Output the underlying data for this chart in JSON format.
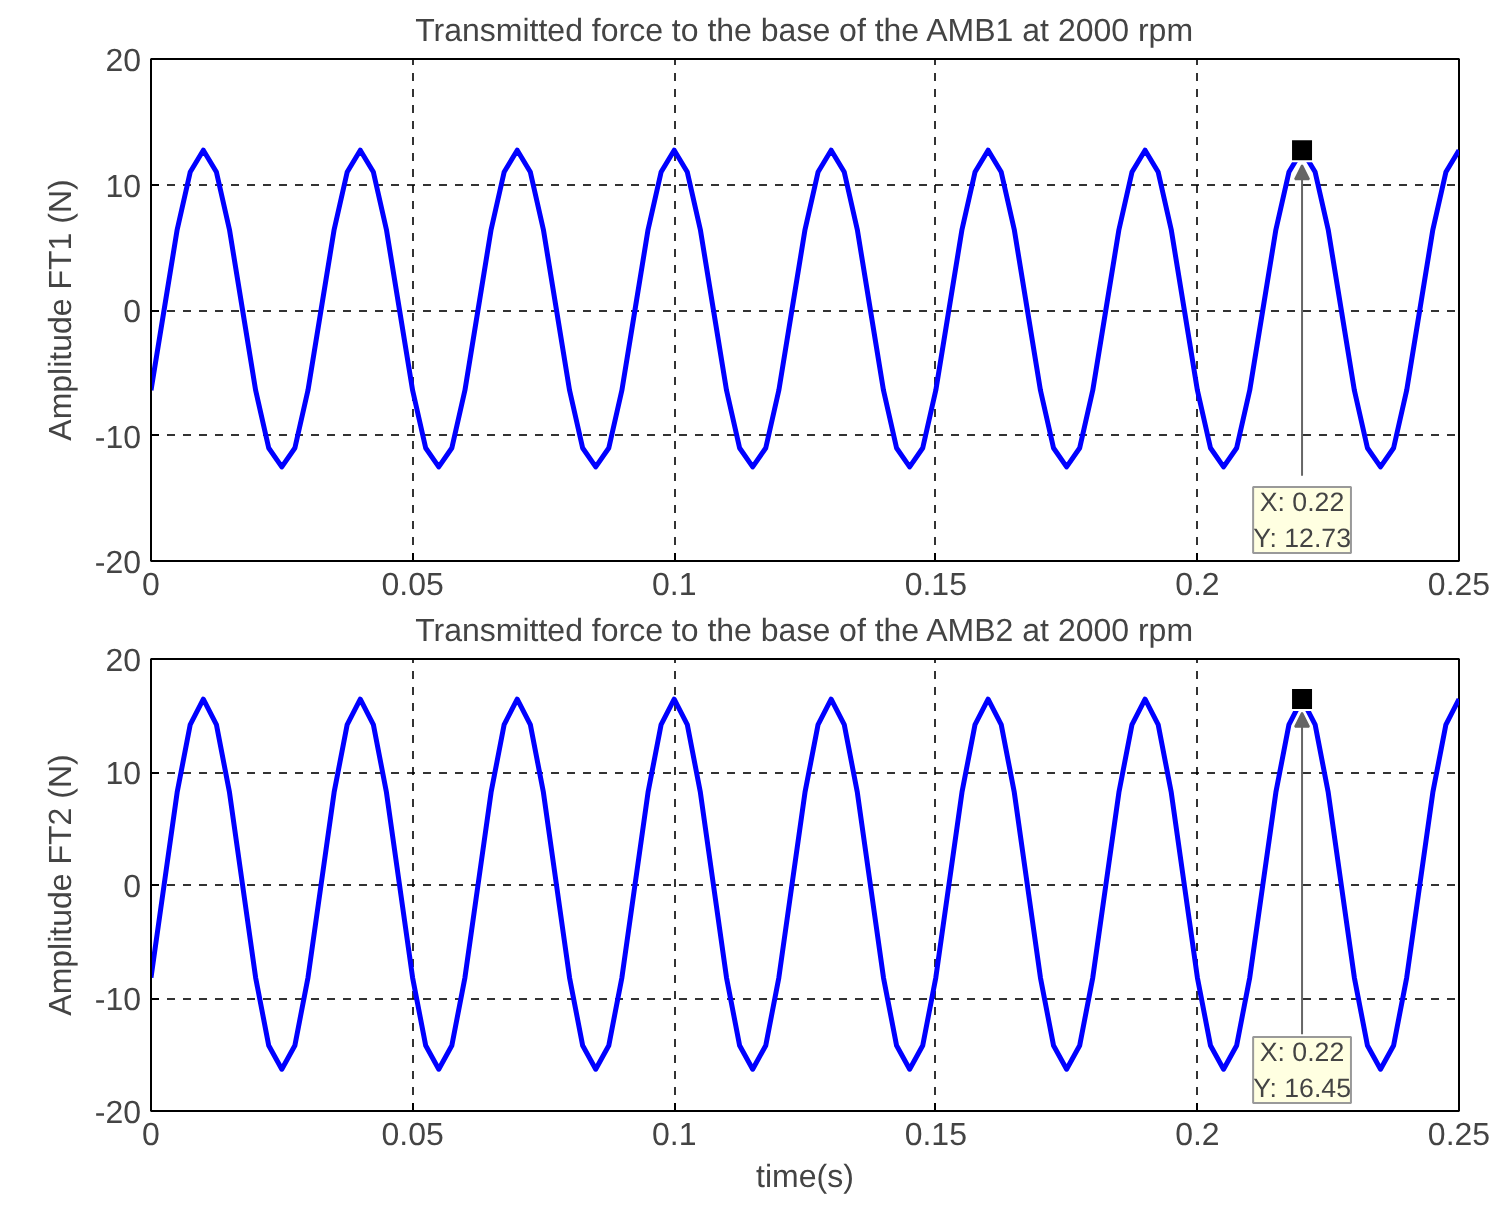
{
  "chart_data": [
    {
      "type": "line",
      "title": "Transmitted force to the base of the AMB1 at 2000 rpm",
      "ylabel": "Amplitude FT1 (N)",
      "xlim": [
        0,
        0.25
      ],
      "ylim": [
        -20,
        20
      ],
      "xticks": [
        0,
        0.05,
        0.1,
        0.15,
        0.2,
        0.25
      ],
      "yticks": [
        -20,
        -10,
        0,
        10,
        20
      ],
      "grid": true,
      "marker": "none",
      "line_style": "solid",
      "annotations": [
        {
          "text": "X: 0.22\nY: 12.73",
          "x": 0.22,
          "y": 12.73
        }
      ],
      "x": [
        0,
        0.0025,
        0.005,
        0.0075,
        0.01,
        0.0125,
        0.015,
        0.0175,
        0.02,
        0.0225,
        0.025,
        0.0275,
        0.03,
        0.0325,
        0.035,
        0.0375,
        0.04,
        0.0425,
        0.045,
        0.0475,
        0.05,
        0.0525,
        0.055,
        0.0575,
        0.06,
        0.0625,
        0.065,
        0.0675,
        0.07,
        0.0725,
        0.075,
        0.0775,
        0.08,
        0.0825,
        0.085,
        0.0875,
        0.09,
        0.0925,
        0.095,
        0.0975,
        0.1,
        0.1025,
        0.105,
        0.1075,
        0.11,
        0.1125,
        0.115,
        0.1175,
        0.12,
        0.1225,
        0.125,
        0.1275,
        0.13,
        0.1325,
        0.135,
        0.1375,
        0.14,
        0.1425,
        0.145,
        0.1475,
        0.15,
        0.1525,
        0.155,
        0.1575,
        0.16,
        0.1625,
        0.165,
        0.1675,
        0.17,
        0.1725,
        0.175,
        0.1775,
        0.18,
        0.1825,
        0.185,
        0.1875,
        0.19,
        0.1925,
        0.195,
        0.1975,
        0.2,
        0.2025,
        0.205,
        0.2075,
        0.21,
        0.2125,
        0.215,
        0.2175,
        0.22,
        0.2225,
        0.225,
        0.2275,
        0.23,
        0.2325,
        0.235,
        0.2375,
        0.24,
        0.2425,
        0.245,
        0.2475,
        0.25
      ],
      "series": [
        {
          "color": "#0000ff",
          "values": [
            -6.4,
            0,
            6.4,
            11,
            12.73,
            11,
            6.4,
            0,
            -6.4,
            -11,
            -12.5,
            -11,
            -6.4,
            0,
            6.4,
            11,
            12.73,
            11,
            6.4,
            0,
            -6.4,
            -11,
            -12.5,
            -11,
            -6.4,
            0,
            6.4,
            11,
            12.73,
            11,
            6.4,
            0,
            -6.4,
            -11,
            -12.5,
            -11,
            -6.4,
            0,
            6.4,
            11,
            12.73,
            11,
            6.4,
            0,
            -6.4,
            -11,
            -12.5,
            -11,
            -6.4,
            0,
            6.4,
            11,
            12.73,
            11,
            6.4,
            0,
            -6.4,
            -11,
            -12.5,
            -11,
            -6.4,
            0,
            6.4,
            11,
            12.73,
            11,
            6.4,
            0,
            -6.4,
            -11,
            -12.5,
            -11,
            -6.4,
            0,
            6.4,
            11,
            12.73,
            11,
            6.4,
            0,
            -6.4,
            -11,
            -12.5,
            -11,
            -6.4,
            0,
            6.4,
            11,
            12.73,
            11,
            6.4,
            0,
            -6.4,
            -11,
            -12.5,
            -11,
            -6.4,
            0,
            6.4,
            11,
            12.73
          ]
        }
      ]
    },
    {
      "type": "line",
      "title": "Transmitted force to the base of the AMB2 at 2000 rpm",
      "xlabel": "time(s)",
      "ylabel": "Amplitude FT2 (N)",
      "xlim": [
        0,
        0.25
      ],
      "ylim": [
        -20,
        20
      ],
      "xticks": [
        0,
        0.05,
        0.1,
        0.15,
        0.2,
        0.25
      ],
      "yticks": [
        -20,
        -10,
        0,
        10,
        20
      ],
      "grid": true,
      "marker": "none",
      "line_style": "solid",
      "annotations": [
        {
          "text": "X: 0.22\nY: 16.45",
          "x": 0.22,
          "y": 16.45
        }
      ],
      "x": [
        0,
        0.0025,
        0.005,
        0.0075,
        0.01,
        0.0125,
        0.015,
        0.0175,
        0.02,
        0.0225,
        0.025,
        0.0275,
        0.03,
        0.0325,
        0.035,
        0.0375,
        0.04,
        0.0425,
        0.045,
        0.0475,
        0.05,
        0.0525,
        0.055,
        0.0575,
        0.06,
        0.0625,
        0.065,
        0.0675,
        0.07,
        0.0725,
        0.075,
        0.0775,
        0.08,
        0.0825,
        0.085,
        0.0875,
        0.09,
        0.0925,
        0.095,
        0.0975,
        0.1,
        0.1025,
        0.105,
        0.1075,
        0.11,
        0.1125,
        0.115,
        0.1175,
        0.12,
        0.1225,
        0.125,
        0.1275,
        0.13,
        0.1325,
        0.135,
        0.1375,
        0.14,
        0.1425,
        0.145,
        0.1475,
        0.15,
        0.1525,
        0.155,
        0.1575,
        0.16,
        0.1625,
        0.165,
        0.1675,
        0.17,
        0.1725,
        0.175,
        0.1775,
        0.18,
        0.1825,
        0.185,
        0.1875,
        0.19,
        0.1925,
        0.195,
        0.1975,
        0.2,
        0.2025,
        0.205,
        0.2075,
        0.21,
        0.2125,
        0.215,
        0.2175,
        0.22,
        0.2225,
        0.225,
        0.2275,
        0.23,
        0.2325,
        0.235,
        0.2375,
        0.24,
        0.2425,
        0.245,
        0.2475,
        0.25
      ],
      "series": [
        {
          "color": "#0000ff",
          "values": [
            -8.2,
            0,
            8.2,
            14.2,
            16.45,
            14.2,
            8.2,
            0,
            -8.2,
            -14.2,
            -16.3,
            -14.2,
            -8.2,
            0,
            8.2,
            14.2,
            16.45,
            14.2,
            8.2,
            0,
            -8.2,
            -14.2,
            -16.3,
            -14.2,
            -8.2,
            0,
            8.2,
            14.2,
            16.45,
            14.2,
            8.2,
            0,
            -8.2,
            -14.2,
            -16.3,
            -14.2,
            -8.2,
            0,
            8.2,
            14.2,
            16.45,
            14.2,
            8.2,
            0,
            -8.2,
            -14.2,
            -16.3,
            -14.2,
            -8.2,
            0,
            8.2,
            14.2,
            16.45,
            14.2,
            8.2,
            0,
            -8.2,
            -14.2,
            -16.3,
            -14.2,
            -8.2,
            0,
            8.2,
            14.2,
            16.45,
            14.2,
            8.2,
            0,
            -8.2,
            -14.2,
            -16.3,
            -14.2,
            -8.2,
            0,
            8.2,
            14.2,
            16.45,
            14.2,
            8.2,
            0,
            -8.2,
            -14.2,
            -16.3,
            -14.2,
            -8.2,
            0,
            8.2,
            14.2,
            16.45,
            14.2,
            8.2,
            0,
            -8.2,
            -14.2,
            -16.3,
            -14.2,
            -8.2,
            0,
            8.2,
            14.2,
            16.45
          ]
        }
      ]
    }
  ]
}
